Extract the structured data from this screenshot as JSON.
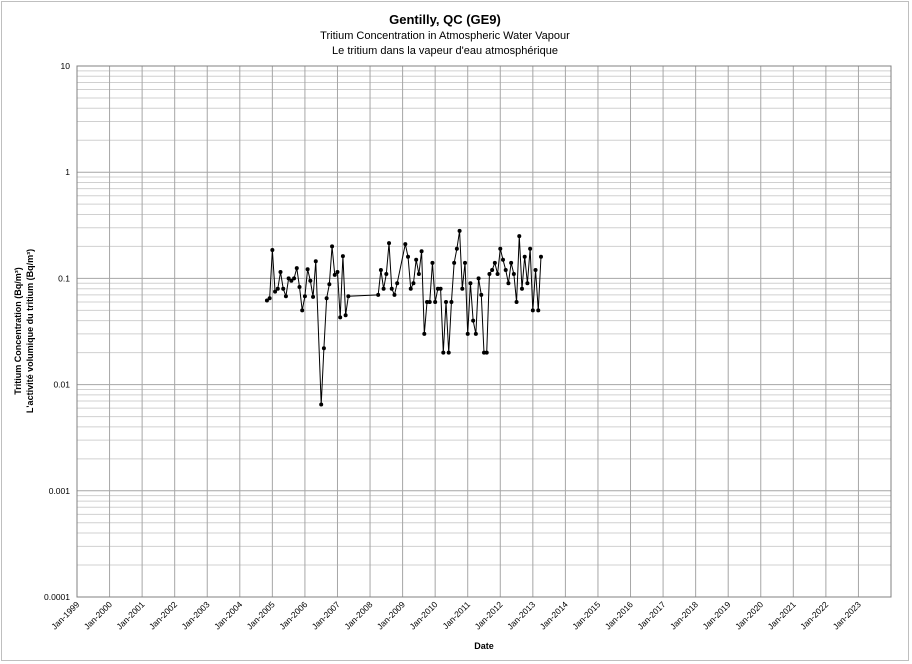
{
  "chart_data": {
    "type": "line",
    "title": "Gentilly, QC (GE9)",
    "subtitle_en": "Tritium Concentration in Atmospheric Water Vapour",
    "subtitle_fr": "Le tritium dans la vapeur d'eau atmosphérique",
    "xlabel": "Date",
    "ylabel_en": "Tritium Concentration (Bq/m³)",
    "ylabel_fr": "L'activité volumique du tritium (Bq/m³)",
    "y_scale": "log",
    "ylim": [
      0.0001,
      10
    ],
    "y_ticks": [
      "0.0001",
      "0.001",
      "0.01",
      "0.1",
      "1",
      "10"
    ],
    "xlim": [
      "1999-01",
      "2024-01"
    ],
    "x_ticks": [
      "Jan-1999",
      "Jan-2000",
      "Jan-2001",
      "Jan-2002",
      "Jan-2003",
      "Jan-2004",
      "Jan-2005",
      "Jan-2006",
      "Jan-2007",
      "Jan-2008",
      "Jan-2009",
      "Jan-2010",
      "Jan-2011",
      "Jan-2012",
      "Jan-2013",
      "Jan-2014",
      "Jan-2015",
      "Jan-2016",
      "Jan-2017",
      "Jan-2018",
      "Jan-2019",
      "Jan-2020",
      "Jan-2021",
      "Jan-2022",
      "Jan-2023"
    ],
    "grid": true,
    "series_color": "#000000",
    "series": [
      {
        "points": [
          [
            "2004-11",
            0.062
          ],
          [
            "2004-12",
            0.065
          ],
          [
            "2005-01",
            0.185
          ],
          [
            "2005-02",
            0.075
          ],
          [
            "2005-03",
            0.08
          ],
          [
            "2005-04",
            0.115
          ],
          [
            "2005-05",
            0.08
          ],
          [
            "2005-06",
            0.068
          ],
          [
            "2005-07",
            0.1
          ],
          [
            "2005-08",
            0.095
          ],
          [
            "2005-09",
            0.1
          ],
          [
            "2005-10",
            0.125
          ],
          [
            "2005-11",
            0.083
          ],
          [
            "2005-12",
            0.05
          ],
          [
            "2006-01",
            0.068
          ],
          [
            "2006-02",
            0.122
          ],
          [
            "2006-03",
            0.095
          ],
          [
            "2006-04",
            0.067
          ],
          [
            "2006-05",
            0.145
          ],
          [
            "2006-07",
            0.0065
          ],
          [
            "2006-08",
            0.022
          ],
          [
            "2006-09",
            0.065
          ],
          [
            "2006-10",
            0.088
          ],
          [
            "2006-11",
            0.2
          ],
          [
            "2006-12",
            0.108
          ],
          [
            "2007-01",
            0.115
          ],
          [
            "2007-02",
            0.043
          ],
          [
            "2007-03",
            0.162
          ],
          [
            "2007-04",
            0.045
          ],
          [
            "2007-05",
            0.068
          ],
          [
            "2008-04",
            0.07
          ],
          [
            "2008-05",
            0.12
          ],
          [
            "2008-06",
            0.08
          ],
          [
            "2008-07",
            0.11
          ],
          [
            "2008-08",
            0.215
          ],
          [
            "2008-09",
            0.08
          ],
          [
            "2008-10",
            0.07
          ],
          [
            "2008-11",
            0.09
          ],
          [
            "2009-02",
            0.21
          ],
          [
            "2009-03",
            0.16
          ],
          [
            "2009-04",
            0.08
          ],
          [
            "2009-05",
            0.09
          ],
          [
            "2009-06",
            0.15
          ],
          [
            "2009-07",
            0.11
          ],
          [
            "2009-08",
            0.18
          ],
          [
            "2009-09",
            0.03
          ],
          [
            "2009-10",
            0.06
          ],
          [
            "2009-11",
            0.06
          ],
          [
            "2009-12",
            0.14
          ],
          [
            "2010-01",
            0.06
          ],
          [
            "2010-02",
            0.08
          ],
          [
            "2010-03",
            0.08
          ],
          [
            "2010-04",
            0.02
          ],
          [
            "2010-05",
            0.06
          ],
          [
            "2010-06",
            0.02
          ],
          [
            "2010-07",
            0.06
          ],
          [
            "2010-08",
            0.14
          ],
          [
            "2010-09",
            0.19
          ],
          [
            "2010-10",
            0.28
          ],
          [
            "2010-11",
            0.08
          ],
          [
            "2010-12",
            0.14
          ],
          [
            "2011-01",
            0.03
          ],
          [
            "2011-02",
            0.09
          ],
          [
            "2011-03",
            0.04
          ],
          [
            "2011-04",
            0.03
          ],
          [
            "2011-05",
            0.1
          ],
          [
            "2011-06",
            0.07
          ],
          [
            "2011-07",
            0.02
          ],
          [
            "2011-08",
            0.02
          ],
          [
            "2011-09",
            0.11
          ],
          [
            "2011-10",
            0.12
          ],
          [
            "2011-11",
            0.14
          ],
          [
            "2011-12",
            0.11
          ],
          [
            "2012-01",
            0.19
          ],
          [
            "2012-02",
            0.15
          ],
          [
            "2012-03",
            0.12
          ],
          [
            "2012-04",
            0.09
          ],
          [
            "2012-05",
            0.14
          ],
          [
            "2012-06",
            0.11
          ],
          [
            "2012-07",
            0.06
          ],
          [
            "2012-08",
            0.25
          ],
          [
            "2012-09",
            0.08
          ],
          [
            "2012-10",
            0.16
          ],
          [
            "2012-11",
            0.09
          ],
          [
            "2012-12",
            0.19
          ],
          [
            "2013-01",
            0.05
          ],
          [
            "2013-02",
            0.12
          ],
          [
            "2013-03",
            0.05
          ],
          [
            "2013-04",
            0.16
          ]
        ]
      }
    ]
  }
}
